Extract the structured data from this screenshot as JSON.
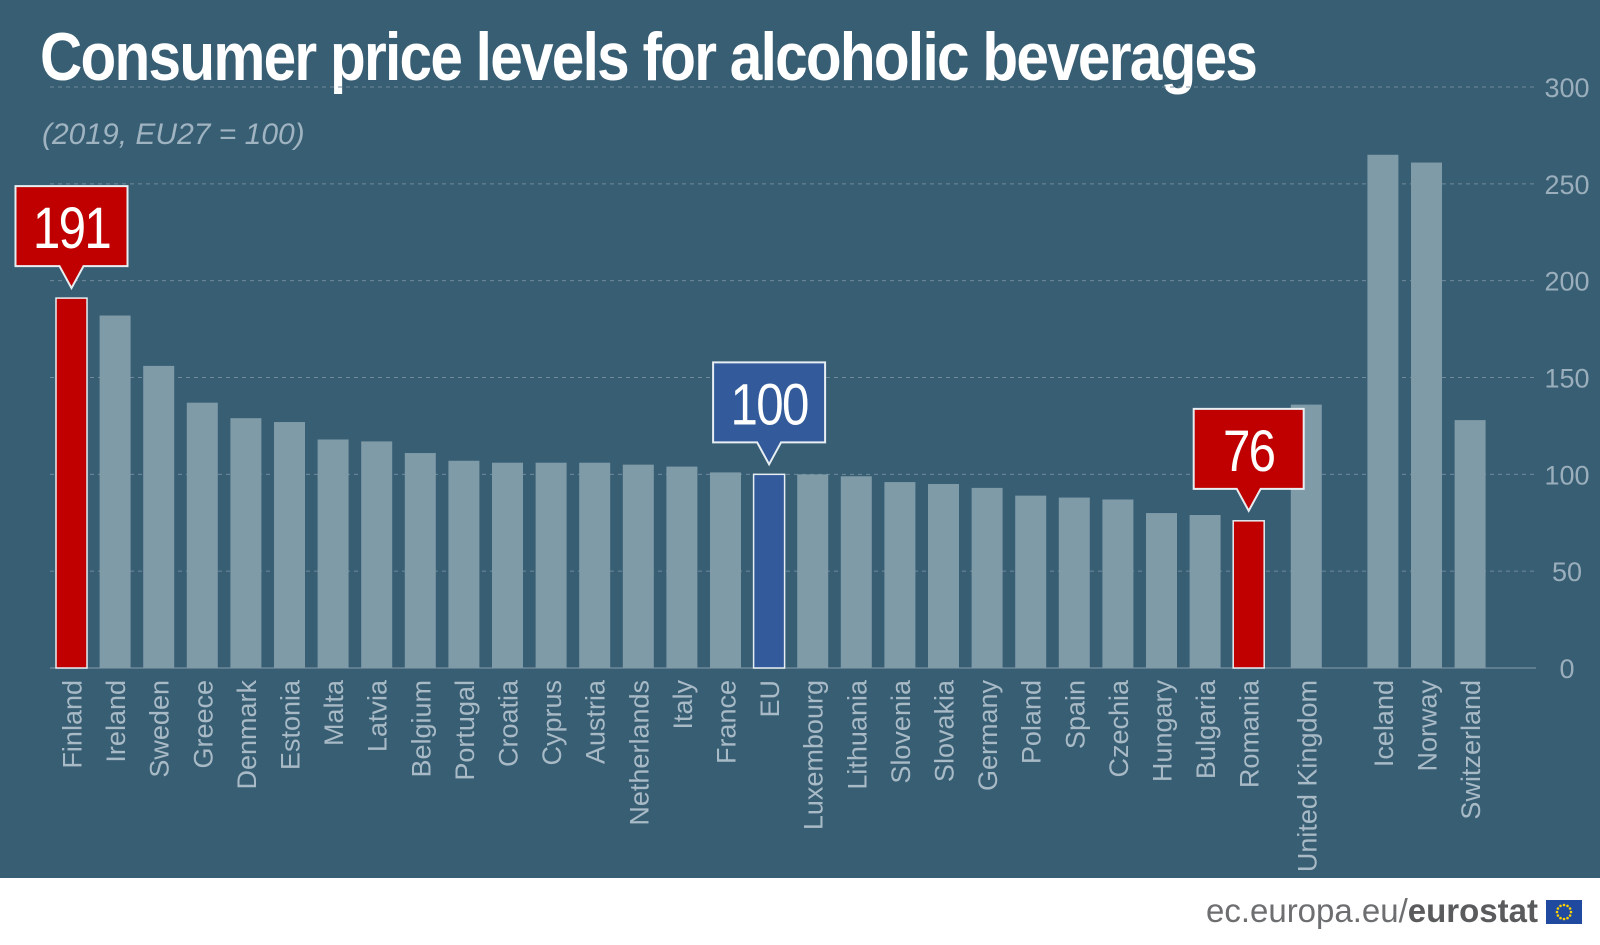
{
  "chart_data": {
    "type": "bar",
    "title": "Consumer price levels for alcoholic beverages",
    "subtitle": "(2019, EU27 = 100)",
    "ylim": [
      0,
      300
    ],
    "yticks": [
      0,
      50,
      100,
      150,
      200,
      250,
      300
    ],
    "grid": true,
    "categories": [
      "Finland",
      "Ireland",
      "Sweden",
      "Greece",
      "Denmark",
      "Estonia",
      "Malta",
      "Latvia",
      "Belgium",
      "Portugal",
      "Croatia",
      "Cyprus",
      "Austria",
      "Netherlands",
      "Italy",
      "France",
      "EU",
      "Luxembourg",
      "Lithuania",
      "Slovenia",
      "Slovakia",
      "Germany",
      "Poland",
      "Spain",
      "Czechia",
      "Hungary",
      "Bulgaria",
      "Romania",
      "United Kingdom",
      "Iceland",
      "Norway",
      "Switzerland"
    ],
    "values": [
      191,
      182,
      156,
      137,
      129,
      127,
      118,
      117,
      111,
      107,
      106,
      106,
      106,
      105,
      104,
      101,
      100,
      100,
      99,
      96,
      95,
      93,
      89,
      88,
      87,
      80,
      79,
      76,
      136,
      265,
      261,
      128
    ],
    "highlighted": {
      "Finland": "max",
      "EU": "eu",
      "Romania": "min"
    },
    "callouts": [
      {
        "category": "Finland",
        "label": "191",
        "style": "max"
      },
      {
        "category": "EU",
        "label": "100",
        "style": "eu"
      },
      {
        "category": "Romania",
        "label": "76",
        "style": "min"
      }
    ]
  },
  "colors": {
    "background": "#385e74",
    "bar": "#7f9ba8",
    "bar_max_min": "#c00000",
    "bar_eu": "#335b9b",
    "grid": "#6f8a9b",
    "tick_label": "#9aaebb",
    "category_label": "#a8bac6",
    "footer_text": "#6d6e70"
  },
  "footer": {
    "source_prefix": "ec.europa.eu/",
    "source_brand": "eurostat",
    "flag_icon": "eu-flag-icon"
  }
}
